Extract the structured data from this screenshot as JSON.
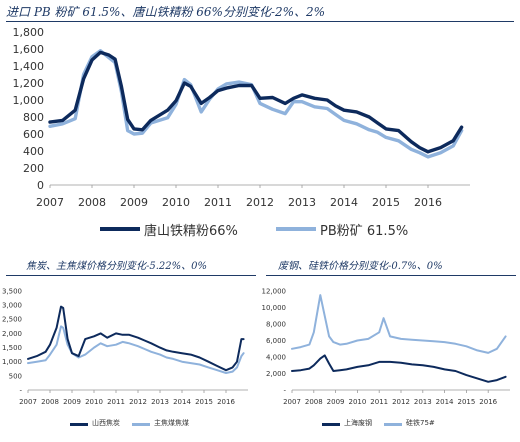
{
  "charts": {
    "top": {
      "title": "进口 PB 粉矿 61.5%、唐山铁精粉 66%分别变化-2%、2%",
      "legend_dark": "唐山铁精粉66%",
      "legend_light": "PB粉矿 61.5%"
    },
    "bl": {
      "title": "焦炭、主焦煤价格分别变化-5.22%、0%",
      "legend_dark": "山西焦炭",
      "legend_light": "主焦煤焦煤"
    },
    "br": {
      "title": "废钢、硅铁价格分别变化-0.7%、0%",
      "legend_dark": "上海废钢",
      "legend_light": "硅铁75#"
    }
  },
  "colors": {
    "dark": "#0d2a5c",
    "light": "#8fb2dc",
    "title": "#1f3a66"
  },
  "chart_data": [
    {
      "type": "line",
      "title": "进口 PB 粉矿 61.5%、唐山铁精粉 66%分别变化-2%、2%",
      "xlim": [
        2007.0,
        2017.0
      ],
      "ylim": [
        0,
        1800
      ],
      "yticks": [
        "0",
        "200",
        "400",
        "600",
        "800",
        "1,000",
        "1,200",
        "1,400",
        "1,600",
        "1,800"
      ],
      "xticks": [
        "2007",
        "2008",
        "2009",
        "2010",
        "2011",
        "2012",
        "2013",
        "2014",
        "2015",
        "2016"
      ],
      "legend": "bottom",
      "series": [
        {
          "name": "唐山铁精粉66%",
          "x": [
            2007.0,
            2007.3,
            2007.6,
            2007.8,
            2008.0,
            2008.2,
            2008.4,
            2008.55,
            2008.7,
            2008.85,
            2009.0,
            2009.2,
            2009.4,
            2009.6,
            2009.8,
            2010.0,
            2010.2,
            2010.35,
            2010.6,
            2010.8,
            2011.0,
            2011.2,
            2011.5,
            2011.8,
            2012.0,
            2012.3,
            2012.6,
            2012.8,
            2013.0,
            2013.3,
            2013.6,
            2013.8,
            2014.0,
            2014.3,
            2014.6,
            2014.8,
            2015.0,
            2015.3,
            2015.6,
            2015.8,
            2016.0,
            2016.3,
            2016.6,
            2016.8
          ],
          "y": [
            740,
            760,
            880,
            1250,
            1470,
            1560,
            1530,
            1480,
            1160,
            770,
            660,
            650,
            760,
            820,
            880,
            990,
            1200,
            1160,
            960,
            1030,
            1110,
            1140,
            1170,
            1170,
            1020,
            1030,
            960,
            1020,
            1060,
            1020,
            1000,
            930,
            880,
            860,
            800,
            730,
            660,
            640,
            510,
            440,
            390,
            440,
            520,
            680
          ]
        },
        {
          "name": "PB粉矿 61.5%",
          "x": [
            2007.0,
            2007.3,
            2007.6,
            2007.8,
            2008.0,
            2008.2,
            2008.4,
            2008.55,
            2008.7,
            2008.85,
            2009.0,
            2009.2,
            2009.4,
            2009.6,
            2009.8,
            2010.0,
            2010.2,
            2010.35,
            2010.6,
            2010.8,
            2011.0,
            2011.2,
            2011.5,
            2011.8,
            2012.0,
            2012.3,
            2012.6,
            2012.8,
            2013.0,
            2013.3,
            2013.6,
            2013.8,
            2014.0,
            2014.3,
            2014.6,
            2014.8,
            2015.0,
            2015.3,
            2015.6,
            2015.8,
            2016.0,
            2016.3,
            2016.6,
            2016.8
          ],
          "y": [
            690,
            720,
            780,
            1300,
            1510,
            1580,
            1500,
            1440,
            1100,
            640,
            600,
            610,
            730,
            760,
            790,
            950,
            1240,
            1180,
            860,
            1010,
            1130,
            1190,
            1210,
            1180,
            960,
            890,
            840,
            980,
            980,
            920,
            900,
            830,
            760,
            720,
            650,
            620,
            560,
            520,
            420,
            380,
            330,
            380,
            460,
            640
          ]
        }
      ]
    },
    {
      "type": "line",
      "title": "焦炭、主焦煤价格分别变化-5.22%、0%",
      "xlim": [
        2007.0,
        2017.0
      ],
      "ylim": [
        0,
        3500
      ],
      "yticks": [
        "-",
        "500",
        "1,000",
        "1,500",
        "2,000",
        "2,500",
        "3,000",
        "3,500"
      ],
      "xticks": [
        "2007",
        "2008",
        "2009",
        "2010",
        "2011",
        "2012",
        "2013",
        "2014",
        "2015",
        "2016"
      ],
      "legend": "bottom",
      "series": [
        {
          "name": "山西焦炭",
          "x": [
            2007.0,
            2007.4,
            2007.8,
            2008.0,
            2008.3,
            2008.5,
            2008.6,
            2008.8,
            2009.0,
            2009.3,
            2009.6,
            2010.0,
            2010.3,
            2010.6,
            2011.0,
            2011.3,
            2011.6,
            2012.0,
            2012.3,
            2012.6,
            2013.0,
            2013.3,
            2013.6,
            2014.0,
            2014.4,
            2014.8,
            2015.2,
            2015.6,
            2016.0,
            2016.3,
            2016.5,
            2016.7,
            2016.8
          ],
          "y": [
            1100,
            1200,
            1350,
            1600,
            2200,
            2950,
            2900,
            1800,
            1300,
            1200,
            1800,
            1900,
            2000,
            1850,
            2000,
            1950,
            1950,
            1850,
            1750,
            1650,
            1500,
            1400,
            1350,
            1300,
            1250,
            1150,
            1000,
            850,
            700,
            800,
            1000,
            1800,
            1800
          ]
        },
        {
          "name": "主焦煤焦煤",
          "x": [
            2007.0,
            2007.4,
            2007.8,
            2008.0,
            2008.3,
            2008.5,
            2008.6,
            2008.8,
            2009.0,
            2009.3,
            2009.6,
            2010.0,
            2010.3,
            2010.6,
            2011.0,
            2011.3,
            2011.6,
            2012.0,
            2012.3,
            2012.6,
            2013.0,
            2013.3,
            2013.6,
            2014.0,
            2014.4,
            2014.8,
            2015.2,
            2015.6,
            2016.0,
            2016.3,
            2016.5,
            2016.7,
            2016.8
          ],
          "y": [
            950,
            1000,
            1050,
            1250,
            1600,
            2250,
            2200,
            1600,
            1300,
            1150,
            1250,
            1500,
            1650,
            1550,
            1600,
            1700,
            1650,
            1550,
            1450,
            1350,
            1250,
            1150,
            1100,
            1000,
            950,
            900,
            800,
            700,
            600,
            650,
            800,
            1200,
            1300
          ]
        }
      ]
    },
    {
      "type": "line",
      "title": "废钢、硅铁价格分别变化-0.7%、0%",
      "xlim": [
        2007.0,
        2017.0
      ],
      "ylim": [
        0,
        12000
      ],
      "yticks": [
        "-",
        "2,000",
        "4,000",
        "6,000",
        "8,000",
        "10,000",
        "12,000"
      ],
      "xticks": [
        "2007",
        "2008",
        "2009",
        "2010",
        "2011",
        "2012",
        "2013",
        "2014",
        "2015",
        "2016"
      ],
      "legend": "bottom",
      "series": [
        {
          "name": "上海废钢",
          "x": [
            2007.0,
            2007.4,
            2007.8,
            2008.0,
            2008.3,
            2008.5,
            2008.7,
            2008.9,
            2009.2,
            2009.5,
            2010.0,
            2010.5,
            2011.0,
            2011.5,
            2012.0,
            2012.5,
            2013.0,
            2013.5,
            2014.0,
            2014.5,
            2015.0,
            2015.5,
            2016.0,
            2016.4,
            2016.8
          ],
          "y": [
            2300,
            2400,
            2600,
            3000,
            3800,
            4200,
            3200,
            2300,
            2400,
            2500,
            2800,
            3000,
            3400,
            3400,
            3300,
            3100,
            3000,
            2800,
            2500,
            2300,
            1800,
            1400,
            1000,
            1200,
            1600
          ]
        },
        {
          "name": "硅铁75#",
          "x": [
            2007.0,
            2007.4,
            2007.8,
            2008.0,
            2008.3,
            2008.5,
            2008.7,
            2008.9,
            2009.2,
            2009.5,
            2010.0,
            2010.5,
            2011.0,
            2011.2,
            2011.5,
            2012.0,
            2012.5,
            2013.0,
            2013.5,
            2014.0,
            2014.5,
            2015.0,
            2015.5,
            2016.0,
            2016.4,
            2016.8
          ],
          "y": [
            5000,
            5200,
            5500,
            7000,
            11500,
            9000,
            6500,
            5800,
            5500,
            5600,
            6000,
            6200,
            7000,
            8700,
            6500,
            6200,
            6100,
            6000,
            5900,
            5800,
            5600,
            5300,
            4800,
            4500,
            5000,
            6500
          ]
        }
      ]
    }
  ]
}
